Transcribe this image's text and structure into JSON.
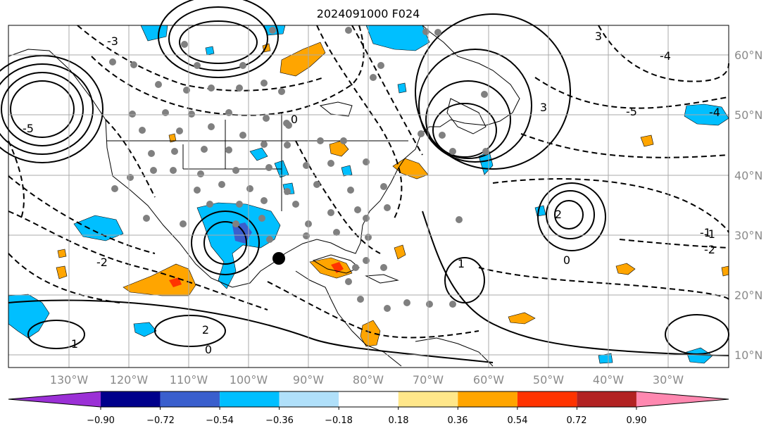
{
  "title": "2024091000 F024",
  "longitude_labels": [
    "130°W",
    "120°W",
    "110°W",
    "100°W",
    "90°W",
    "80°W",
    "70°W",
    "60°W",
    "50°W",
    "40°W",
    "30°W"
  ],
  "latitude_labels": [
    "60°N",
    "50°N",
    "40°N",
    "30°N",
    "20°N",
    "10°N"
  ],
  "colorbar": {
    "tick_labels": [
      "−0.90",
      "−0.72",
      "−0.54",
      "−0.36",
      "−0.18",
      "0.18",
      "0.36",
      "0.54",
      "0.72",
      "0.90"
    ],
    "colors": [
      "#9b30d6",
      "#00008b",
      "#3a5fcd",
      "#00bfff",
      "#b0e0fa",
      "#ffffff",
      "#ffe78a",
      "#ffa500",
      "#ff3300",
      "#b22222",
      "#ff88b0"
    ],
    "extend": "both"
  },
  "contour_labels": [
    "-5",
    "-4",
    "-3",
    "-2",
    "-1",
    "0",
    "0",
    "1",
    "1",
    "2",
    "2",
    "3",
    "-4",
    "-5",
    "-1",
    "-2",
    "3",
    "0"
  ],
  "colors": {
    "positive_shading": "#ffa500",
    "negative_shading": "#00bfff",
    "contour_line": "#000000",
    "grid": "#aaaaaa",
    "station_dot": "#808080"
  }
}
